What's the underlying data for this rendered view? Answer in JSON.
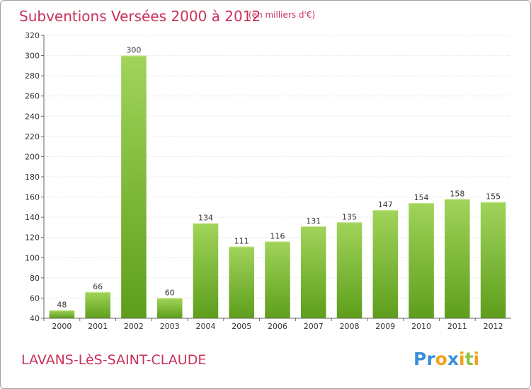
{
  "chart_data": {
    "type": "bar",
    "title": "Subventions Versées 2000 à 2012",
    "subtitle": "(en milliers d'€)",
    "categories": [
      "2000",
      "2001",
      "2002",
      "2003",
      "2004",
      "2005",
      "2006",
      "2007",
      "2008",
      "2009",
      "2010",
      "2011",
      "2012"
    ],
    "values": [
      48,
      66,
      300,
      60,
      134,
      111,
      116,
      131,
      135,
      147,
      154,
      158,
      155
    ],
    "ylim": [
      40,
      320
    ],
    "yticks": [
      40,
      60,
      80,
      100,
      120,
      140,
      160,
      180,
      200,
      220,
      240,
      260,
      280,
      300,
      320
    ],
    "grid": true,
    "bar_color_top": "#a0d45a",
    "bar_color_bottom": "#5e9e1c"
  },
  "footer": {
    "commune": "LAVANS-LèS-SAINT-CLAUDE",
    "logo": {
      "letters": [
        "P",
        "r",
        "o",
        "x",
        "i",
        "t",
        "i"
      ],
      "colors": [
        "#3a8fd8",
        "#3a8fd8",
        "#f5a21b",
        "#3a8fd8",
        "#f5a21b",
        "#8bc34a",
        "#f5a21b"
      ]
    }
  },
  "colors": {
    "title": "#c8325a",
    "border": "#a0a0a0"
  }
}
